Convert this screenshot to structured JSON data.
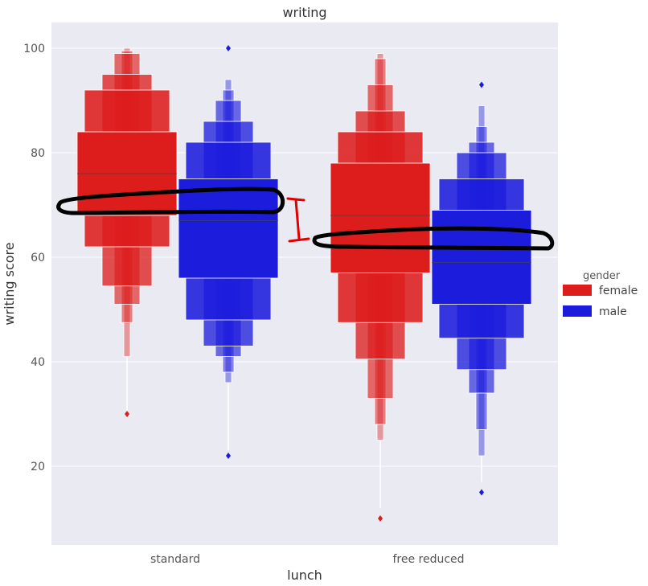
{
  "chart_data": {
    "type": "boxen",
    "title": "writing",
    "xlabel": "lunch",
    "ylabel": "writing score",
    "categories": [
      "standard",
      "free reduced"
    ],
    "ylim": [
      5,
      105
    ],
    "yticks": [
      20,
      40,
      60,
      80,
      100
    ],
    "grid": true,
    "legend": {
      "title": "gender",
      "position": "right",
      "entries": [
        {
          "label": "female",
          "color": "#dd1c1c"
        },
        {
          "label": "male",
          "color": "#1c1cdd"
        }
      ]
    },
    "series": [
      {
        "name": "female",
        "color": "#dd1c1c",
        "groups": [
          {
            "category": "standard",
            "median": 76,
            "boxes": [
              [
                68,
                84
              ],
              [
                62,
                92
              ],
              [
                54.5,
                95
              ],
              [
                51,
                99
              ],
              [
                47.5,
                99.5
              ],
              [
                41,
                100
              ]
            ],
            "whisker": [
              30,
              41
            ],
            "outliers": [
              30
            ]
          },
          {
            "category": "free reduced",
            "median": 68,
            "boxes": [
              [
                57,
                78
              ],
              [
                47.5,
                84
              ],
              [
                40.5,
                88
              ],
              [
                33,
                93
              ],
              [
                28,
                98
              ],
              [
                25,
                99
              ]
            ],
            "whisker": [
              12,
              25
            ],
            "outliers": [
              10
            ]
          }
        ]
      },
      {
        "name": "male",
        "color": "#1c1cdd",
        "groups": [
          {
            "category": "standard",
            "median": 67,
            "boxes": [
              [
                56,
                75
              ],
              [
                48,
                82
              ],
              [
                43,
                86
              ],
              [
                41,
                90
              ],
              [
                38,
                92
              ],
              [
                36,
                94
              ]
            ],
            "whisker": [
              23,
              36
            ],
            "outliers": [
              22,
              100
            ]
          },
          {
            "category": "free reduced",
            "median": 59,
            "boxes": [
              [
                51,
                69
              ],
              [
                44.5,
                75
              ],
              [
                38.5,
                80
              ],
              [
                34,
                82
              ],
              [
                27,
                85
              ],
              [
                22,
                89
              ]
            ],
            "whisker": [
              17,
              22
            ],
            "outliers": [
              15,
              93
            ]
          }
        ]
      }
    ],
    "annotations": [
      {
        "type": "freehand-loop",
        "color": "#000000",
        "around": "standard medians",
        "y": 70
      },
      {
        "type": "freehand-loop",
        "color": "#000000",
        "around": "free reduced medians",
        "y": 63
      },
      {
        "type": "bracket",
        "color": "#e00000",
        "from": 63,
        "to": 71.5
      }
    ]
  }
}
